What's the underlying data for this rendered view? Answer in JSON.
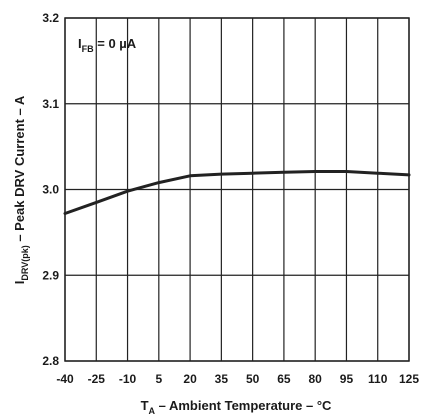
{
  "chart_data": {
    "type": "line",
    "x": [
      -40,
      -25,
      -10,
      5,
      20,
      35,
      50,
      65,
      80,
      95,
      110,
      125
    ],
    "series": [
      {
        "values": [
          2.972,
          2.985,
          2.998,
          3.008,
          3.016,
          3.018,
          3.019,
          3.02,
          3.021,
          3.021,
          3.019,
          3.017
        ]
      }
    ],
    "x_tick_labels": [
      "-40",
      "-25",
      "-10",
      "5",
      "20",
      "35",
      "50",
      "65",
      "80",
      "95",
      "110",
      "125"
    ],
    "y_ticks": [
      2.8,
      2.9,
      3.0,
      3.1,
      3.2
    ],
    "y_tick_labels": [
      "2.8",
      "2.9",
      "3.0",
      "3.1",
      "3.2"
    ],
    "xlim": [
      -40,
      125
    ],
    "ylim": [
      2.8,
      3.2
    ],
    "grid": true,
    "xlabel": {
      "main": "T",
      "sub": "A",
      "rest": " – Ambient Temperature – °C"
    },
    "ylabel": {
      "main": "I",
      "sub": "DRV(pk)",
      "rest": " – Peak DRV Current – A"
    },
    "annotation": {
      "main": "I",
      "sub": "FB",
      "rest": " = 0 µA"
    },
    "colors": {
      "line": "#222222",
      "grid": "#222222"
    }
  }
}
